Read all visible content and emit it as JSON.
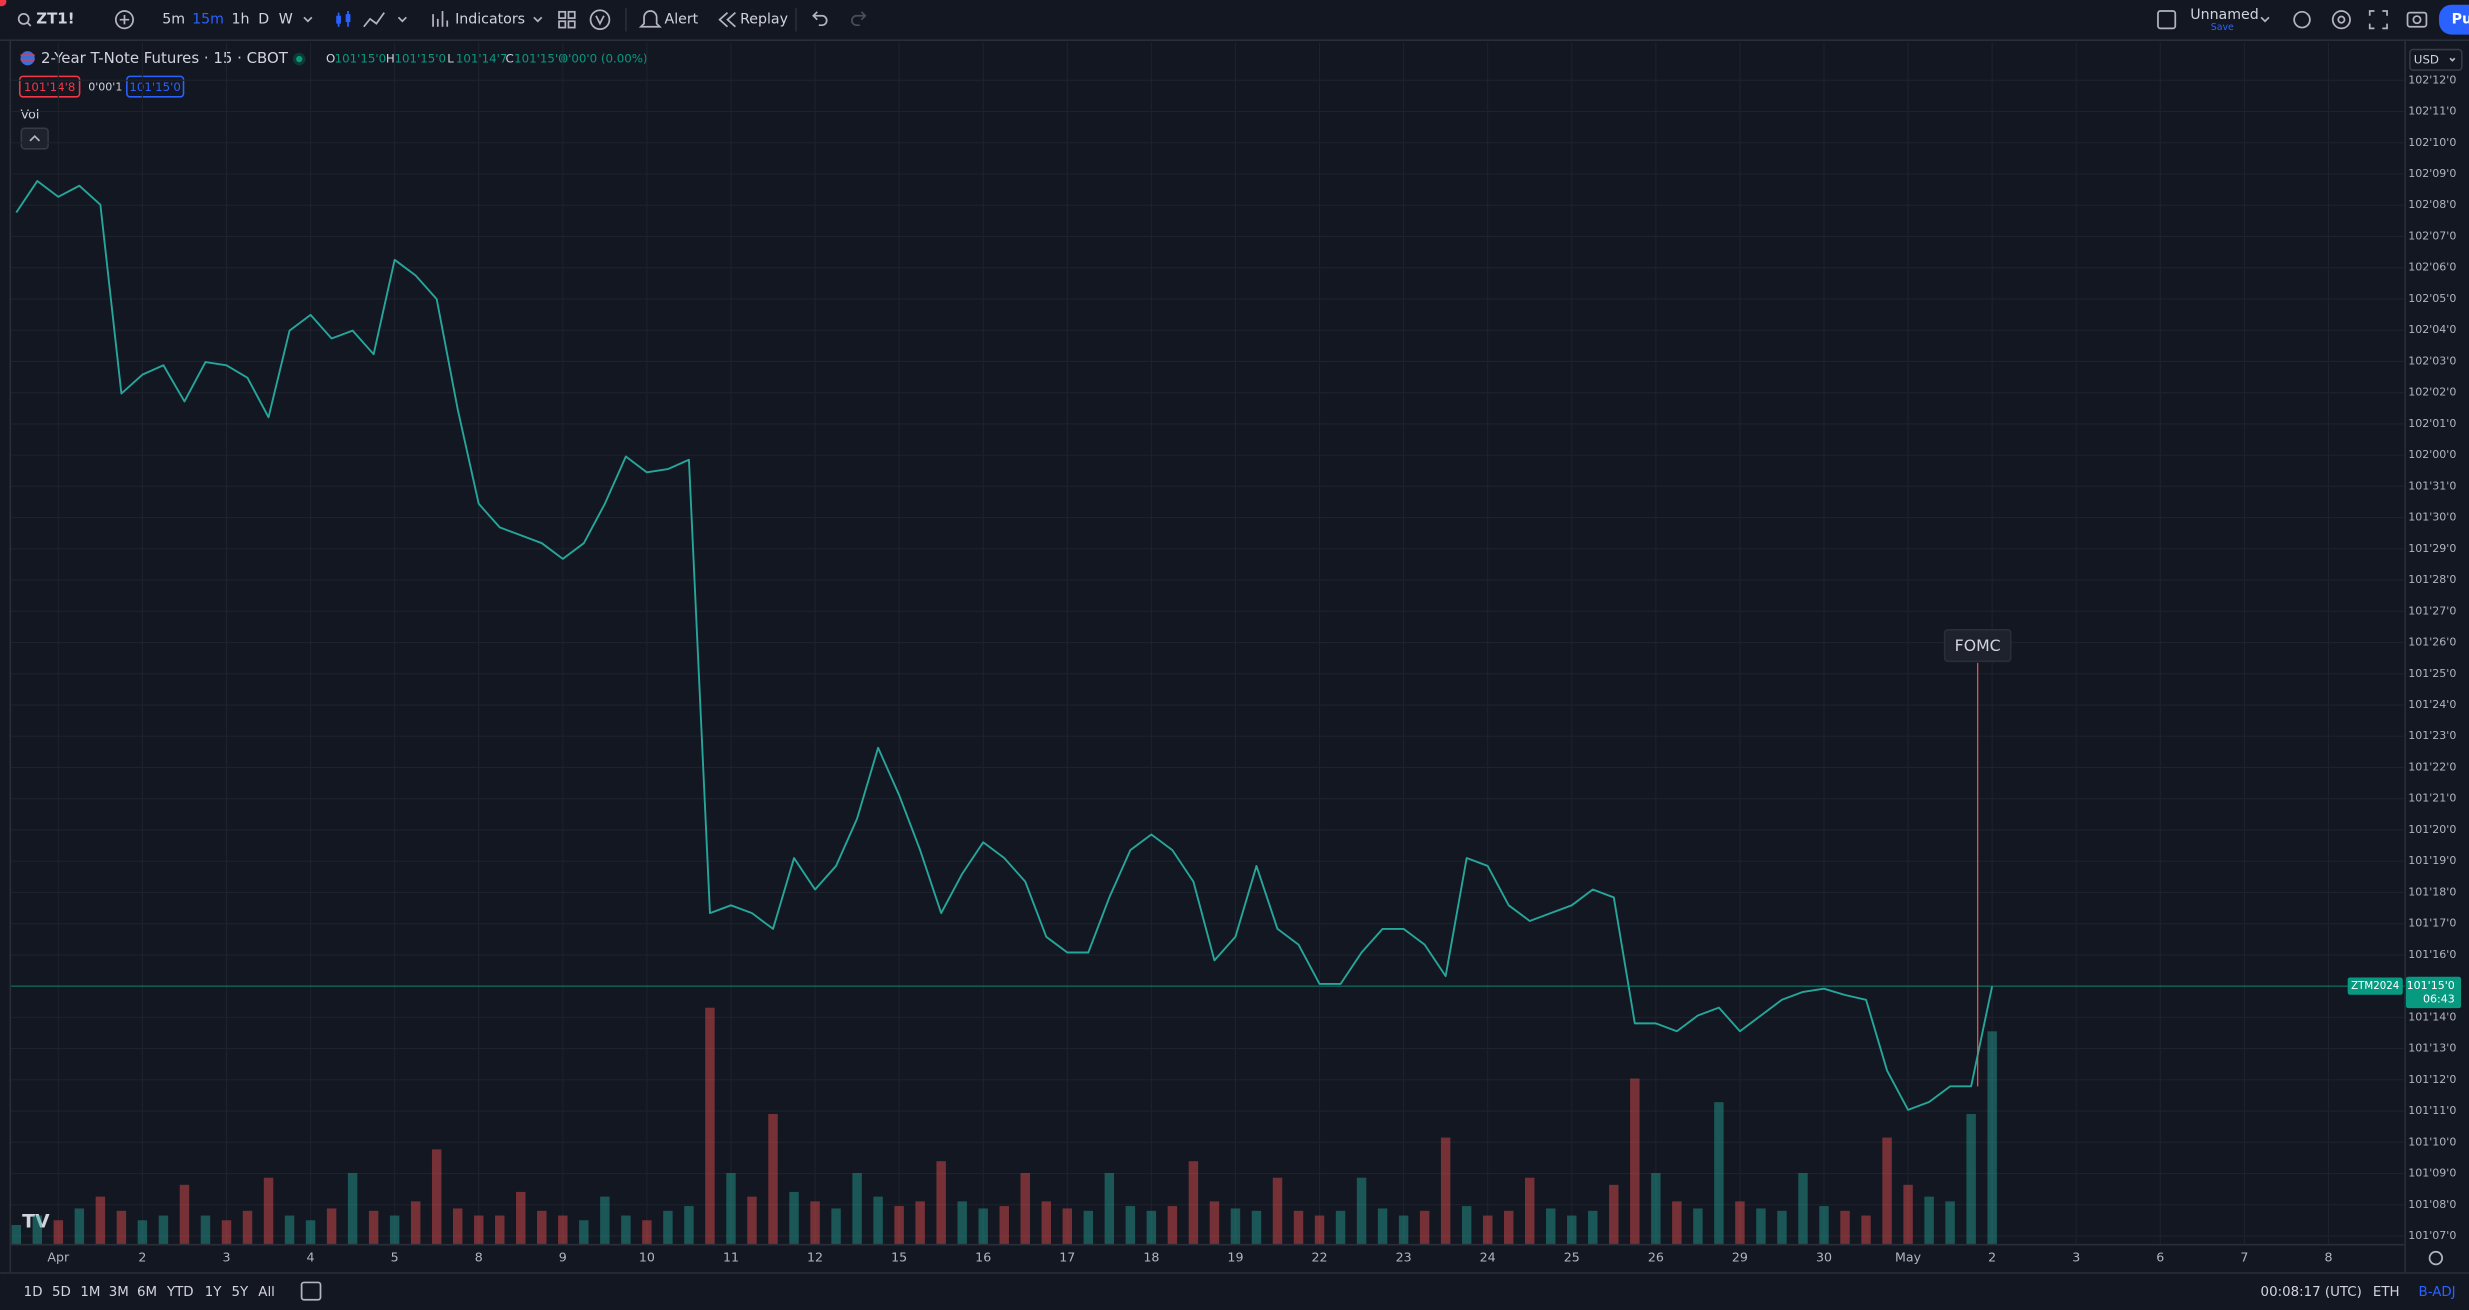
{
  "toolbar": {
    "symbol": "ZT1!",
    "intervals": [
      "5m",
      "15m",
      "1h",
      "D",
      "W"
    ],
    "active_interval": "15m",
    "indicators": "Indicators",
    "alert": "Alert",
    "replay": "Replay",
    "layout_name": "Unnamed",
    "layout_status": "Save",
    "publish": "Pu"
  },
  "legend": {
    "title": "2-Year T-Note Futures · 15 · CBOT",
    "fields": [
      {
        "key": "O",
        "value": "101'15'0"
      },
      {
        "key": "H",
        "value": "101'15'0"
      },
      {
        "key": "L",
        "value": "101'14'7"
      },
      {
        "key": "C",
        "value": "101'15'0"
      }
    ],
    "change": "0'00'0 (0.00%)",
    "bid": "101'14'8",
    "spread": "0'00'1",
    "ask": "101'15'0",
    "volume_label": "Vol"
  },
  "currency": "USD",
  "bottom_bar": {
    "ranges": [
      "1D",
      "5D",
      "1M",
      "3M",
      "6M",
      "YTD",
      "1Y",
      "5Y",
      "All"
    ],
    "clock": "00:08:17 (UTC)",
    "session": "ETH",
    "adjustment": "B-ADJ"
  },
  "chart_data": {
    "type": "line",
    "categories": [
      null,
      null,
      "Apr",
      null,
      null,
      null,
      "2",
      null,
      null,
      null,
      "3",
      null,
      null,
      null,
      "4",
      null,
      null,
      null,
      "5",
      null,
      null,
      null,
      "8",
      null,
      null,
      null,
      "9",
      null,
      null,
      null,
      "10",
      null,
      null,
      null,
      "11",
      null,
      null,
      null,
      "12",
      null,
      null,
      null,
      "15",
      null,
      null,
      null,
      "16",
      null,
      null,
      null,
      "17",
      null,
      null,
      null,
      "18",
      null,
      null,
      null,
      "19",
      null,
      null,
      null,
      "22",
      null,
      null,
      null,
      "23",
      null,
      null,
      null,
      "24",
      null,
      null,
      null,
      "25",
      null,
      null,
      null,
      "26",
      null,
      null,
      null,
      "29",
      null,
      null,
      null,
      "30",
      null,
      null,
      null,
      "May",
      null,
      null,
      null,
      "2",
      null,
      null,
      null,
      "3",
      null,
      null,
      null,
      "6",
      null,
      null,
      null,
      "7",
      null,
      null,
      null,
      "8"
    ],
    "series": [
      {
        "name": "ZT1!",
        "color": "#26a69a",
        "values": [
          102.2427,
          102.2742,
          102.2584,
          102.2695,
          102.2506,
          102.0616,
          102.0805,
          102.0899,
          102.0537,
          102.0931,
          102.0899,
          102.0773,
          102.0379,
          102.1246,
          102.1403,
          102.1167,
          102.1246,
          102.1009,
          102.1954,
          102.1797,
          102.1561,
          102.0458,
          101.9513,
          101.9277,
          101.9198,
          101.9119,
          101.8962,
          101.9119,
          101.9513,
          101.9986,
          101.9828,
          101.986,
          101.9954,
          101.5418,
          101.5496,
          101.5418,
          101.526,
          101.5969,
          101.5654,
          101.589,
          101.6363,
          101.7072,
          101.6599,
          101.6048,
          101.5418,
          101.5811,
          101.6127,
          101.5969,
          101.5733,
          101.5181,
          101.5024,
          101.5024,
          101.5575,
          101.6048,
          101.6205,
          101.6048,
          101.5733,
          101.4945,
          101.5181,
          101.589,
          101.526,
          101.5103,
          101.4709,
          101.4709,
          101.5024,
          101.526,
          101.526,
          101.5103,
          101.4788,
          101.5969,
          101.589,
          101.5496,
          101.5339,
          101.5418,
          101.5496,
          101.5654,
          101.5575,
          101.4315,
          101.4315,
          101.4236,
          101.4394,
          101.4473,
          101.4236,
          101.4394,
          101.4551,
          101.463,
          101.4662,
          101.4599,
          101.4551,
          101.3843,
          101.3449,
          101.3528,
          101.3685,
          101.3685,
          101.46875,
          null,
          null,
          null,
          null,
          null,
          null,
          null,
          null,
          null,
          null,
          null,
          null,
          null,
          null,
          null,
          null
        ]
      },
      {
        "name": "Vol",
        "axis": "y2",
        "up_color": "#26a69a",
        "down_color": "#ef5350",
        "values": [
          8,
          12,
          10,
          15,
          20,
          14,
          10,
          12,
          25,
          12,
          10,
          14,
          28,
          12,
          10,
          15,
          30,
          14,
          12,
          18,
          40,
          15,
          12,
          12,
          22,
          14,
          12,
          10,
          20,
          12,
          10,
          14,
          16,
          100,
          30,
          20,
          55,
          22,
          18,
          15,
          30,
          20,
          16,
          18,
          35,
          18,
          15,
          16,
          30,
          18,
          15,
          14,
          30,
          16,
          14,
          16,
          35,
          18,
          15,
          14,
          28,
          14,
          12,
          14,
          28,
          15,
          12,
          14,
          45,
          16,
          12,
          14,
          28,
          15,
          12,
          14,
          25,
          70,
          30,
          18,
          15,
          60,
          18,
          15,
          14,
          30,
          16,
          14,
          12,
          45,
          25,
          20,
          18,
          55,
          90,
          null,
          null,
          null,
          null,
          null,
          null,
          null,
          null,
          null,
          null,
          null,
          null,
          null,
          null,
          null,
          null
        ]
      }
    ],
    "ylim": [
      101.2109,
      102.4128
    ],
    "yticks": [
      {
        "value": 102.375,
        "label": "102'12'0"
      },
      {
        "value": 102.34375,
        "label": "102'11'0"
      },
      {
        "value": 102.3125,
        "label": "102'10'0"
      },
      {
        "value": 102.28125,
        "label": "102'09'0"
      },
      {
        "value": 102.25,
        "label": "102'08'0"
      },
      {
        "value": 102.21875,
        "label": "102'07'0"
      },
      {
        "value": 102.1875,
        "label": "102'06'0"
      },
      {
        "value": 102.15625,
        "label": "102'05'0"
      },
      {
        "value": 102.125,
        "label": "102'04'0"
      },
      {
        "value": 102.09375,
        "label": "102'03'0"
      },
      {
        "value": 102.0625,
        "label": "102'02'0"
      },
      {
        "value": 102.03125,
        "label": "102'01'0"
      },
      {
        "value": 102,
        "label": "102'00'0"
      },
      {
        "value": 101.96875,
        "label": "101'31'0"
      },
      {
        "value": 101.9375,
        "label": "101'30'0"
      },
      {
        "value": 101.90625,
        "label": "101'29'0"
      },
      {
        "value": 101.875,
        "label": "101'28'0"
      },
      {
        "value": 101.84375,
        "label": "101'27'0"
      },
      {
        "value": 101.8125,
        "label": "101'26'0"
      },
      {
        "value": 101.78125,
        "label": "101'25'0"
      },
      {
        "value": 101.75,
        "label": "101'24'0"
      },
      {
        "value": 101.71875,
        "label": "101'23'0"
      },
      {
        "value": 101.6875,
        "label": "101'22'0"
      },
      {
        "value": 101.65625,
        "label": "101'21'0"
      },
      {
        "value": 101.625,
        "label": "101'20'0"
      },
      {
        "value": 101.59375,
        "label": "101'19'0"
      },
      {
        "value": 101.5625,
        "label": "101'18'0"
      },
      {
        "value": 101.53125,
        "label": "101'17'0"
      },
      {
        "value": 101.5,
        "label": "101'16'0"
      },
      {
        "value": 101.46875,
        "label": "101'15'0"
      },
      {
        "value": 101.4375,
        "label": "101'14'0"
      },
      {
        "value": 101.40625,
        "label": "101'13'0"
      },
      {
        "value": 101.375,
        "label": "101'12'0"
      },
      {
        "value": 101.34375,
        "label": "101'11'0"
      },
      {
        "value": 101.3125,
        "label": "101'10'0"
      },
      {
        "value": 101.28125,
        "label": "101'09'0"
      },
      {
        "value": 101.25,
        "label": "101'08'0"
      },
      {
        "value": 101.21875,
        "label": "101'07'0"
      }
    ],
    "y2lim": [
      0,
      100
    ],
    "grid": true,
    "price_line": {
      "value": 101.46875,
      "label": "101'15'0",
      "symbol": "ZTM2024",
      "countdown": "06:43",
      "color": "#089981"
    },
    "annotation": "FOMC"
  }
}
